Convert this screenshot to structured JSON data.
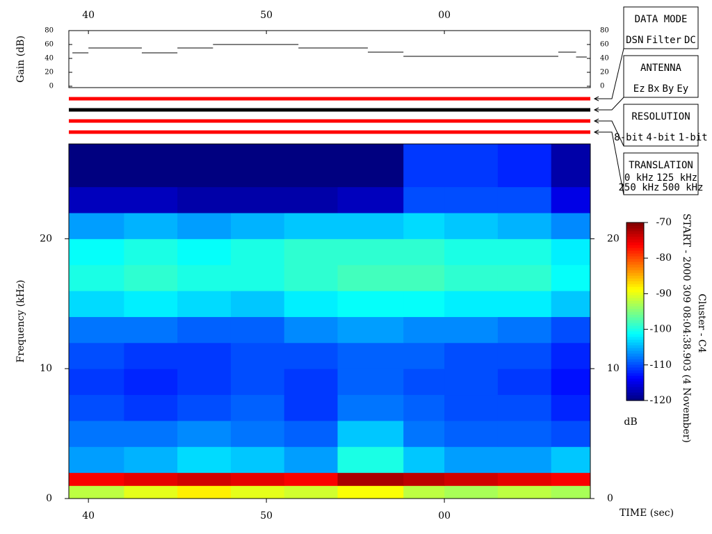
{
  "chart_data": [
    {
      "type": "step",
      "ylabel": "Gain (dB)",
      "xlim": [
        38.9,
        68.2
      ],
      "xticks": [
        40,
        50,
        {
          "value": 60,
          "label": "00"
        }
      ],
      "ylim": [
        0,
        80
      ],
      "yticks": [
        0,
        20,
        40,
        60,
        80
      ],
      "color": "#000000",
      "edges": [
        39.1,
        40.0,
        43.0,
        45.0,
        47.0,
        51.8,
        55.7,
        57.7,
        66.4,
        67.4,
        68.0
      ],
      "values": [
        48,
        55,
        48,
        55,
        60,
        55,
        49,
        43,
        49,
        42
      ]
    },
    {
      "type": "heatmap",
      "xlabel": "TIME (sec)",
      "ylabel": "Frequency (kHz)",
      "xlim": [
        38.9,
        68.2
      ],
      "xticks": [
        40,
        50,
        {
          "value": 60,
          "label": "00"
        }
      ],
      "ylim": [
        0,
        27.3
      ],
      "yticks": [
        0,
        10,
        20
      ],
      "x_bins": [
        38.9,
        42,
        45,
        48,
        51,
        54,
        57.7,
        60,
        63,
        66,
        68.2
      ],
      "y_bins": [
        0,
        1,
        2,
        4,
        6,
        8,
        10,
        12,
        14,
        16,
        18,
        20,
        22,
        24,
        27.3
      ],
      "z": [
        [
          -92,
          -90,
          -88,
          -90,
          -91,
          -89,
          -92,
          -93,
          -92,
          -93
        ],
        [
          -76,
          -75,
          -74,
          -75,
          -76,
          -72,
          -73,
          -74,
          -75,
          -76
        ],
        [
          -106,
          -105,
          -103,
          -104,
          -106,
          -100,
          -104,
          -106,
          -106,
          -104
        ],
        [
          -108,
          -108,
          -107,
          -108,
          -109,
          -104,
          -108,
          -109,
          -109,
          -110
        ],
        [
          -110,
          -111,
          -110,
          -109,
          -111,
          -108,
          -109,
          -110,
          -110,
          -112
        ],
        [
          -111,
          -112,
          -111,
          -110,
          -111,
          -109,
          -110,
          -110,
          -111,
          -113
        ],
        [
          -110,
          -111,
          -111,
          -110,
          -110,
          -109,
          -109,
          -110,
          -110,
          -112
        ],
        [
          -108,
          -108,
          -109,
          -109,
          -107,
          -106,
          -107,
          -107,
          -108,
          -110
        ],
        [
          -103,
          -102,
          -103,
          -104,
          -102,
          -101,
          -101,
          -102,
          -102,
          -104
        ],
        [
          -100,
          -99,
          -100,
          -100,
          -99,
          -98,
          -98,
          -99,
          -99,
          -101
        ],
        [
          -101,
          -100,
          -101,
          -100,
          -99,
          -99,
          -99,
          -100,
          -100,
          -102
        ],
        [
          -106,
          -105,
          -106,
          -105,
          -104,
          -104,
          -103,
          -104,
          -105,
          -107
        ],
        [
          -117,
          -117,
          -118,
          -118,
          -118,
          -117,
          -110,
          -110,
          -110,
          -115
        ],
        [
          -120,
          -120,
          -120,
          -120,
          -120,
          -120,
          -111,
          -111,
          -112,
          -118
        ]
      ],
      "colormap": "jet",
      "clim": [
        -120,
        -70
      ],
      "cticks": [
        -70,
        -80,
        -90,
        -100,
        -110,
        -120
      ],
      "colorbar_label": "dB",
      "annotations": [
        "START - 2000 309 08:04:38.903 (4 November)",
        "Cluster - C4"
      ]
    }
  ],
  "status_bars": [
    {
      "color": "#ff0000"
    },
    {
      "color": "#000000"
    },
    {
      "color": "#ff0000"
    },
    {
      "color": "#ff0000"
    }
  ],
  "panels": [
    {
      "title": "DATA MODE",
      "items": [
        {
          "text": "DSN",
          "color": "#ff0000"
        },
        {
          "text": "Filter",
          "color": "#00dd00"
        },
        {
          "text": "DC",
          "color": "#0000ff"
        }
      ]
    },
    {
      "title": "ANTENNA",
      "items": [
        {
          "text": "Ez",
          "color": "#ff0000"
        },
        {
          "text": "Bx",
          "color": "#00dd00"
        },
        {
          "text": "By",
          "color": "#0000ff"
        },
        {
          "text": "Ey",
          "color": "#000000"
        }
      ]
    },
    {
      "title": "RESOLUTION",
      "items": [
        {
          "text": "8-bit",
          "color": "#ff0000"
        },
        {
          "text": "4-bit",
          "color": "#00dd00"
        },
        {
          "text": "1-bit",
          "color": "#0000ff"
        }
      ]
    },
    {
      "title": "TRANSLATION",
      "items": [
        {
          "text": "0 kHz",
          "color": "#ff0000"
        },
        {
          "text": "125 kHz",
          "color": "#00dd00"
        },
        {
          "text": "250 kHz",
          "color": "#0000ff"
        },
        {
          "text": "500 kHz",
          "color": "#000000"
        }
      ]
    }
  ]
}
